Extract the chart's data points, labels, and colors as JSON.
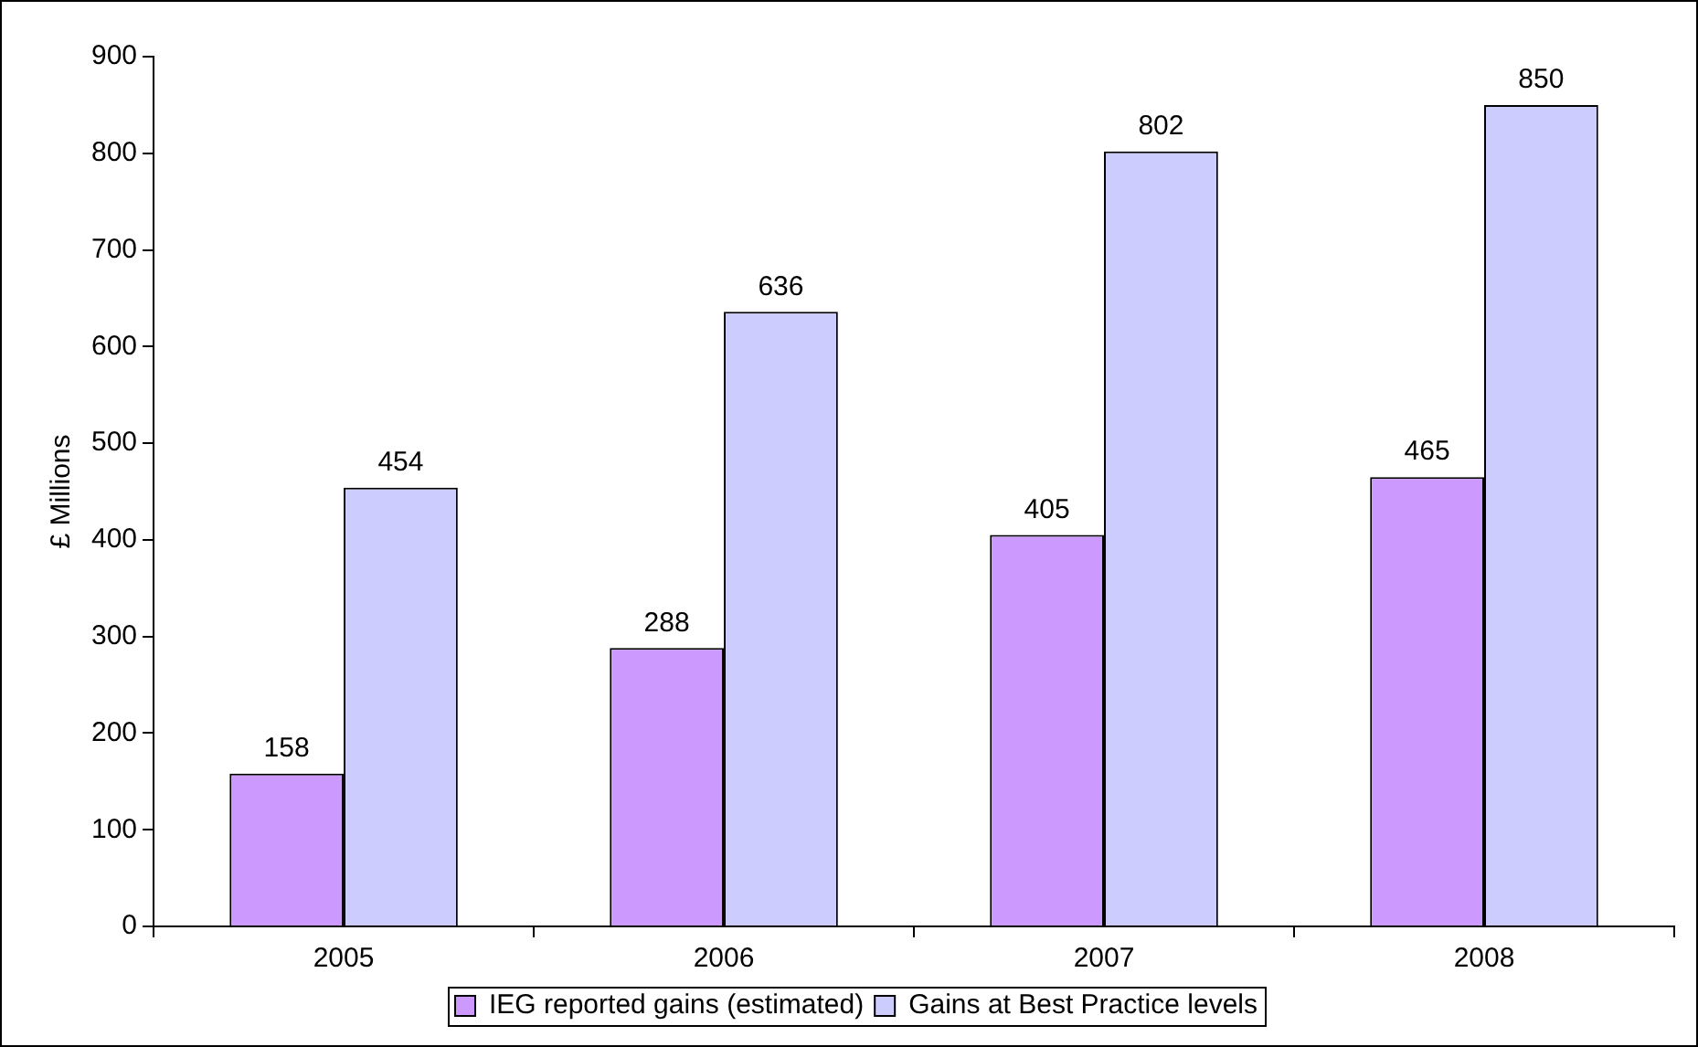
{
  "chart_data": {
    "type": "bar",
    "ylabel": "£ Millions",
    "categories": [
      "2005",
      "2006",
      "2007",
      "2008"
    ],
    "series": [
      {
        "name": "IEG reported gains (estimated)",
        "color": "#cc99ff",
        "values": [
          158,
          288,
          405,
          465
        ]
      },
      {
        "name": "Gains at Best Practice levels",
        "color": "#ccccff",
        "values": [
          454,
          636,
          802,
          850
        ]
      }
    ],
    "ylim": [
      0,
      900
    ],
    "yticks": [
      0,
      100,
      200,
      300,
      400,
      500,
      600,
      700,
      800,
      900
    ],
    "grid": false,
    "legend": "bottom",
    "data_labels": true
  }
}
